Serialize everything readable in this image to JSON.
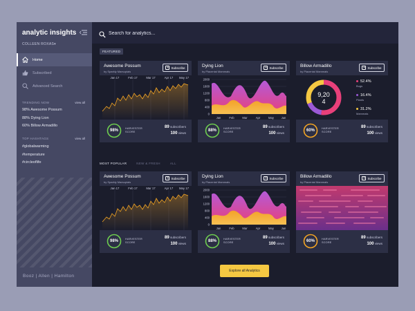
{
  "app": {
    "title": "analytic insights",
    "user": "COLLEEN ROXAS"
  },
  "nav": [
    {
      "label": "Home",
      "active": true
    },
    {
      "label": "Subscribed",
      "active": false
    },
    {
      "label": "Advanced Search",
      "active": false
    }
  ],
  "trending": {
    "title": "TRENDING NOW",
    "view_all": "view all",
    "items": [
      "98% Awesome Possum",
      "88% Dying Lion",
      "60% Billow Armadillo"
    ]
  },
  "hashtags": {
    "title": "TOP HASHTAGS",
    "view_all": "view all",
    "items": [
      "#globalwarming",
      "#temperature",
      "#circleoflife"
    ]
  },
  "footer_logo": "Booz | Allen | Hamilton",
  "search": {
    "placeholder": "Search for analytics..."
  },
  "featured_label": "FEATURED",
  "tabs": [
    {
      "label": "MOST POPULAR",
      "active": true
    },
    {
      "label": "NEW & FRESH",
      "active": false
    },
    {
      "label": "ALL",
      "active": false
    }
  ],
  "explore_label": "Explore all Analytics",
  "subscribe_label": "Subscribe",
  "score_label_line1": "HARVESTER",
  "score_label_line2": "SCORE",
  "line_chart": {
    "x_ticks": [
      "Jan 17",
      "Feb 17",
      "Mar 17",
      "Apr 17",
      "May 17"
    ]
  },
  "area_chart": {
    "y_ticks": [
      "2000",
      "1600",
      "1200",
      "800",
      "400",
      "0"
    ],
    "x_ticks": [
      "Jan",
      "Feb",
      "Mar",
      "Apr",
      "May",
      "Jun"
    ]
  },
  "featured": [
    {
      "title": "Awesome Possum",
      "sub": "by Sparkly Marsupials",
      "score": "98%",
      "subscribers": "89",
      "subscribers_label": "subscribers",
      "views": "100",
      "views_label": "views",
      "color": "#6fcf4f"
    },
    {
      "title": "Dying Lion",
      "sub": "by Placental Mammals",
      "score": "88%",
      "subscribers": "89",
      "subscribers_label": "subscribers",
      "views": "100",
      "views_label": "views",
      "color": "#6fcf4f"
    },
    {
      "title": "Billow Armadillo",
      "sub": "by Placental Mammals",
      "score": "60%",
      "subscribers": "89",
      "subscribers_label": "subscribers",
      "views": "100",
      "views_label": "views",
      "color": "#f5a623"
    }
  ],
  "popular": [
    {
      "title": "Awesome Possum",
      "sub": "by Sparkly Marsupials",
      "score": "98%",
      "subscribers": "89",
      "subscribers_label": "subscribers",
      "views": "100",
      "views_label": "views",
      "color": "#6fcf4f"
    },
    {
      "title": "Dying Lion",
      "sub": "by Placental Mammals",
      "score": "88%",
      "subscribers": "89",
      "subscribers_label": "subscribers",
      "views": "100",
      "views_label": "views",
      "color": "#6fcf4f"
    },
    {
      "title": "Billow Armadillo",
      "sub": "by Placental Mammals",
      "score": "60%",
      "subscribers": "89",
      "subscribers_label": "subscribers",
      "views": "100",
      "views_label": "views",
      "color": "#f5a623"
    }
  ],
  "donut": {
    "center_line1": "9,20",
    "center_line2": "4",
    "segments": [
      {
        "value": "52.4%",
        "name": "Bugs",
        "color": "#e8407a",
        "fraction": 0.524
      },
      {
        "value": "16.4%",
        "name": "Plants",
        "color": "#9b59d6",
        "fraction": 0.164
      },
      {
        "value": "31.2%",
        "name": "Mammals",
        "color": "#f5c842",
        "fraction": 0.312
      }
    ]
  }
}
